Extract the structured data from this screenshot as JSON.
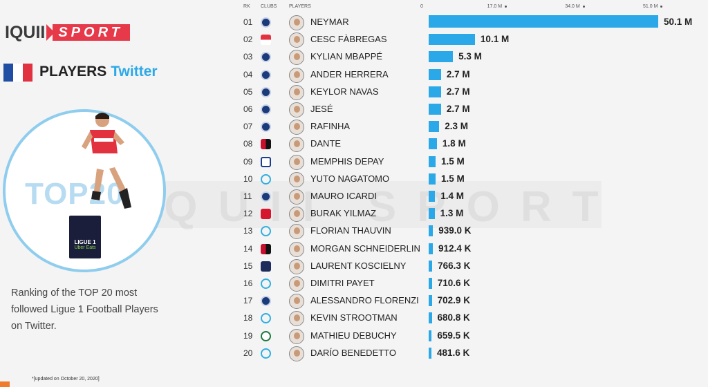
{
  "brand": {
    "logo_text": "IQUII",
    "logo_sport": "SPORT"
  },
  "panel": {
    "heading_players": "PLAYERS",
    "heading_twitter": "Twitter",
    "top_label": "TOP20",
    "league_badge": {
      "line1": "LIGUE 1",
      "line2": "Uber Eats"
    },
    "description": "Ranking of the TOP 20 most followed Ligue 1 Football Players on Twitter.",
    "updated": "*[updated on October 20, 2020]",
    "watermark": "IQUII SPORT"
  },
  "colors": {
    "bar": "#2ba8e8",
    "accent": "#e63a4a",
    "flag_blue": "#1f4ea3",
    "flag_red": "#e03241"
  },
  "chart_data": {
    "type": "bar",
    "orientation": "horizontal",
    "headers": {
      "rank": "RK",
      "club": "CLUBS",
      "player": "PLAYERS"
    },
    "x_ticks": [
      "0",
      "17.0 M",
      "34.0 M",
      "51.0 M"
    ],
    "x_tick_values": [
      0,
      17000000,
      34000000,
      51000000
    ],
    "xlim": [
      0,
      51000000
    ],
    "rows": [
      {
        "rank": "01",
        "club": "psg",
        "name": "NEYMAR",
        "value": 50100000,
        "label": "50.1 M"
      },
      {
        "rank": "02",
        "club": "monaco",
        "name": "CESC FÀBREGAS",
        "value": 10100000,
        "label": "10.1 M"
      },
      {
        "rank": "03",
        "club": "psg",
        "name": "KYLIAN MBAPPÉ",
        "value": 5300000,
        "label": "5.3 M"
      },
      {
        "rank": "04",
        "club": "psg",
        "name": "ANDER HERRERA",
        "value": 2700000,
        "label": "2.7 M"
      },
      {
        "rank": "05",
        "club": "psg",
        "name": "KEYLOR NAVAS",
        "value": 2700000,
        "label": "2.7 M"
      },
      {
        "rank": "06",
        "club": "psg",
        "name": "JESÉ",
        "value": 2700000,
        "label": "2.7 M"
      },
      {
        "rank": "07",
        "club": "psg",
        "name": "RAFINHA",
        "value": 2300000,
        "label": "2.3 M"
      },
      {
        "rank": "08",
        "club": "nice",
        "name": "DANTE",
        "value": 1800000,
        "label": "1.8 M"
      },
      {
        "rank": "09",
        "club": "lyon",
        "name": "MEMPHIS DEPAY",
        "value": 1500000,
        "label": "1.5 M"
      },
      {
        "rank": "10",
        "club": "marseille",
        "name": "YUTO NAGATOMO",
        "value": 1500000,
        "label": "1.5 M"
      },
      {
        "rank": "11",
        "club": "psg",
        "name": "MAURO ICARDI",
        "value": 1400000,
        "label": "1.4 M"
      },
      {
        "rank": "12",
        "club": "lille",
        "name": "BURAK YILMAZ",
        "value": 1300000,
        "label": "1.3 M"
      },
      {
        "rank": "13",
        "club": "marseille",
        "name": "FLORIAN THAUVIN",
        "value": 939000,
        "label": "939.0 K"
      },
      {
        "rank": "14",
        "club": "nice",
        "name": "MORGAN SCHNEIDERLIN",
        "value": 912400,
        "label": "912.4 K"
      },
      {
        "rank": "15",
        "club": "bordeaux",
        "name": "LAURENT KOSCIELNY",
        "value": 766300,
        "label": "766.3 K"
      },
      {
        "rank": "16",
        "club": "marseille",
        "name": "DIMITRI PAYET",
        "value": 710600,
        "label": "710.6 K"
      },
      {
        "rank": "17",
        "club": "psg",
        "name": "ALESSANDRO FLORENZI",
        "value": 702900,
        "label": "702.9 K"
      },
      {
        "rank": "18",
        "club": "marseille",
        "name": "KEVIN STROOTMAN",
        "value": 680800,
        "label": "680.8 K"
      },
      {
        "rank": "19",
        "club": "saint-etienne",
        "name": "MATHIEU DEBUCHY",
        "value": 659500,
        "label": "659.5 K"
      },
      {
        "rank": "20",
        "club": "marseille",
        "name": "DARÍO BENEDETTO",
        "value": 481600,
        "label": "481.6 K"
      }
    ]
  }
}
